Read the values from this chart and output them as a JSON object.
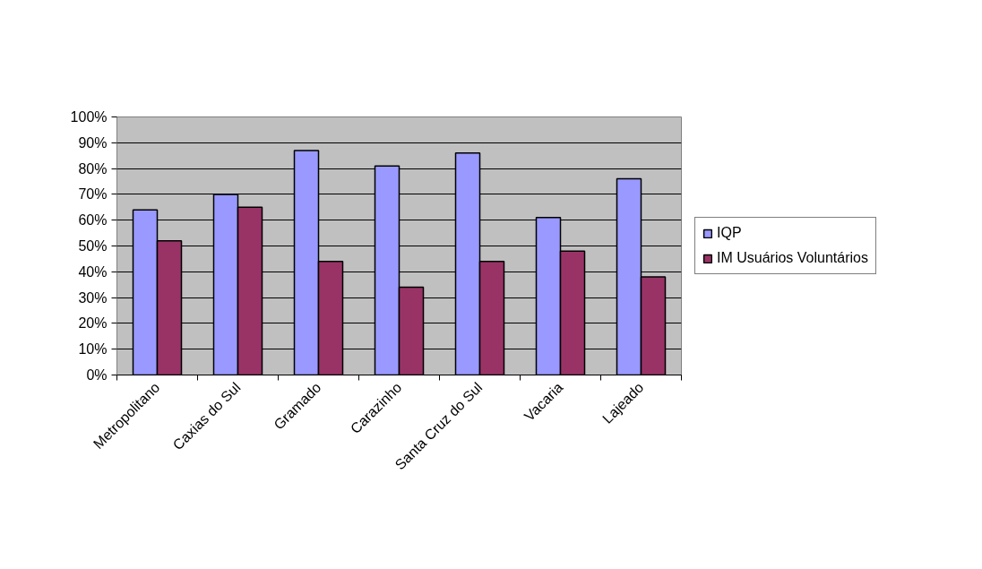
{
  "chart_data": {
    "type": "bar",
    "categories": [
      "Metropolitano",
      "Caxias do Sul",
      "Gramado",
      "Carazinho",
      "Santa Cruz do Sul",
      "Vacaria",
      "Lajeado"
    ],
    "series": [
      {
        "name": "IQP",
        "color": "#9999ff",
        "values": [
          64,
          70,
          87,
          81,
          86,
          61,
          76
        ]
      },
      {
        "name": "IM Usuários Voluntários",
        "color": "#993366",
        "values": [
          52,
          65,
          44,
          34,
          44,
          48,
          38
        ]
      }
    ],
    "ylim": [
      0,
      100
    ],
    "yticks": [
      {
        "value": 0,
        "label": "0%"
      },
      {
        "value": 10,
        "label": "10%"
      },
      {
        "value": 20,
        "label": "20%"
      },
      {
        "value": 30,
        "label": "30%"
      },
      {
        "value": 40,
        "label": "40%"
      },
      {
        "value": 50,
        "label": "50%"
      },
      {
        "value": 60,
        "label": "60%"
      },
      {
        "value": 70,
        "label": "70%"
      },
      {
        "value": 80,
        "label": "80%"
      },
      {
        "value": 90,
        "label": "90%"
      },
      {
        "value": 100,
        "label": "100%"
      }
    ],
    "grid": "y",
    "legend": "right"
  }
}
